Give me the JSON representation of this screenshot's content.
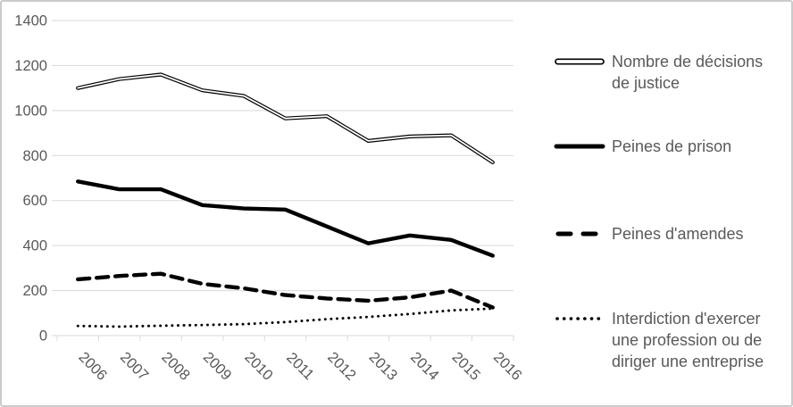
{
  "chart_data": {
    "type": "line",
    "title": "",
    "categories": [
      "2006",
      "2007",
      "2008",
      "2009",
      "2010",
      "2011",
      "2012",
      "2013",
      "2014",
      "2015",
      "2016"
    ],
    "series": [
      {
        "name": "Nombre de décisions de justice",
        "style": "double-line",
        "color": "#000000",
        "values": [
          1100,
          1140,
          1160,
          1090,
          1065,
          965,
          975,
          865,
          885,
          890,
          770
        ]
      },
      {
        "name": "Peines de prison",
        "style": "solid-thick",
        "color": "#000000",
        "values": [
          685,
          650,
          650,
          580,
          565,
          560,
          485,
          410,
          445,
          425,
          355
        ]
      },
      {
        "name": "Peines d'amendes",
        "style": "dashed",
        "color": "#000000",
        "values": [
          250,
          265,
          275,
          230,
          210,
          180,
          165,
          155,
          170,
          200,
          125
        ]
      },
      {
        "name": "Interdiction d'exercer une profession ou de diriger une entreprise",
        "style": "dotted",
        "color": "#000000",
        "values": [
          43,
          40,
          44,
          47,
          51,
          60,
          73,
          83,
          96,
          112,
          120
        ]
      }
    ],
    "xlabel": "",
    "ylabel": "",
    "ylim": [
      0,
      1400
    ],
    "y_ticks": [
      0,
      200,
      400,
      600,
      800,
      1000,
      1200,
      1400
    ],
    "grid": "horizontal",
    "legend_position": "right",
    "colors": {
      "grid": "#d9d9d9",
      "axis_text": "#595959",
      "line": "#000000",
      "frame": "#cbcbcb"
    }
  }
}
